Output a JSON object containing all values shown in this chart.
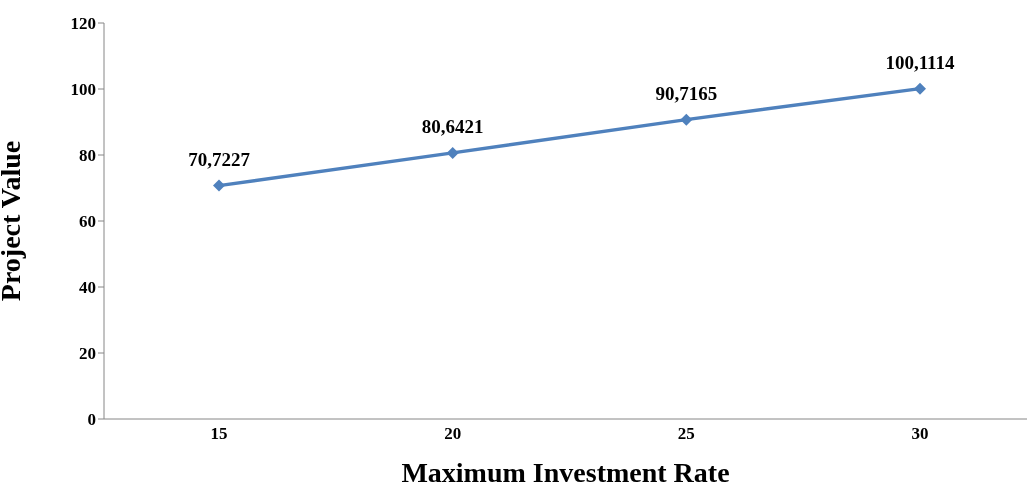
{
  "chart_data": {
    "type": "line",
    "xlabel": "Maximum Investment Rate",
    "ylabel": "Project Value",
    "categories": [
      "15",
      "20",
      "25",
      "30"
    ],
    "series": [
      {
        "color": "#4f81bd",
        "values": [
          70.7227,
          80.6421,
          90.7165,
          100.1114
        ],
        "value_labels": [
          "70,7227",
          "80,6421",
          "90,7165",
          "100,1114"
        ]
      }
    ],
    "ylim": [
      0,
      120
    ],
    "yticks": [
      0,
      20,
      40,
      60,
      80,
      100,
      120
    ],
    "grid": false,
    "legend": false,
    "marker": "diamond",
    "line_style": "solid"
  }
}
